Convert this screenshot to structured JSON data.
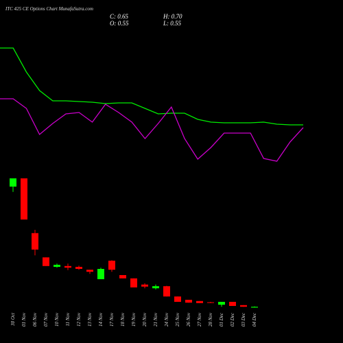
{
  "chart_data": [
    {
      "type": "candlestick",
      "title": "ITC 425 CE Options  Chart MunafaSutra.com",
      "ohlc_labels": {
        "close": "C: 0.65",
        "high": "H: 0.70",
        "open": "O: 0.55",
        "low": "L: 0.55"
      },
      "categories": [
        "30 Oct",
        "01 Nov",
        "06 Nov",
        "07 Nov",
        "10 Nov",
        "11 Nov",
        "12 Nov",
        "13 Nov",
        "14 Nov",
        "17 Nov",
        "18 Nov",
        "19 Nov",
        "20 Nov",
        "21 Nov",
        "24 Nov",
        "25 Nov",
        "26 Nov",
        "27 Nov",
        "28 Nov",
        "01 Dec",
        "02 Dec",
        "03 Dec",
        "04 Dec"
      ],
      "open": [
        15.25,
        16.25,
        9.6,
        6.65,
        5.5,
        5.6,
        5.5,
        5.15,
        4.0,
        6.25,
        4.5,
        4.1,
        3.35,
        2.9,
        3.15,
        1.9,
        1.5,
        1.35,
        1.2,
        0.9,
        1.25,
        0.85,
        0.55
      ],
      "high": [
        16.25,
        16.25,
        10.0,
        6.65,
        5.9,
        5.9,
        5.65,
        5.15,
        5.4,
        6.3,
        4.5,
        4.1,
        3.5,
        3.35,
        3.2,
        1.9,
        1.5,
        1.35,
        1.25,
        1.25,
        1.25,
        0.85,
        0.7
      ],
      "low": [
        14.6,
        11.25,
        6.9,
        5.6,
        5.4,
        5.1,
        5.15,
        4.65,
        4.0,
        4.9,
        4.1,
        3.0,
        2.9,
        2.75,
        1.9,
        1.25,
        1.15,
        1.1,
        1.1,
        0.65,
        0.75,
        0.65,
        0.55
      ],
      "close": [
        16.25,
        11.25,
        7.6,
        5.6,
        5.75,
        5.4,
        5.25,
        4.9,
        5.25,
        5.15,
        4.1,
        3.0,
        3.1,
        3.15,
        1.9,
        1.25,
        1.15,
        1.1,
        1.15,
        1.25,
        0.75,
        0.65,
        0.65
      ],
      "up_color": "#00ff00",
      "down_color": "#ff0000",
      "ylim": [
        0,
        17.5
      ]
    },
    {
      "type": "line",
      "series": [
        {
          "color": "#00ee00",
          "values": [
            90,
            90,
            72.5,
            59,
            51.5,
            51.5,
            51,
            50.5,
            49.5,
            50,
            50,
            46,
            42,
            42.5,
            42.5,
            38,
            36,
            35.5,
            35.5,
            35.5,
            36,
            34.5,
            34,
            34
          ]
        },
        {
          "color": "#cc00cc",
          "values": [
            53,
            53,
            46,
            27,
            35,
            42,
            43,
            36,
            49,
            43,
            36,
            24,
            35,
            47,
            24,
            9,
            17.5,
            28,
            28,
            28,
            9.5,
            7.5,
            21.5,
            32
          ]
        }
      ],
      "ylim": [
        0,
        105
      ]
    }
  ]
}
